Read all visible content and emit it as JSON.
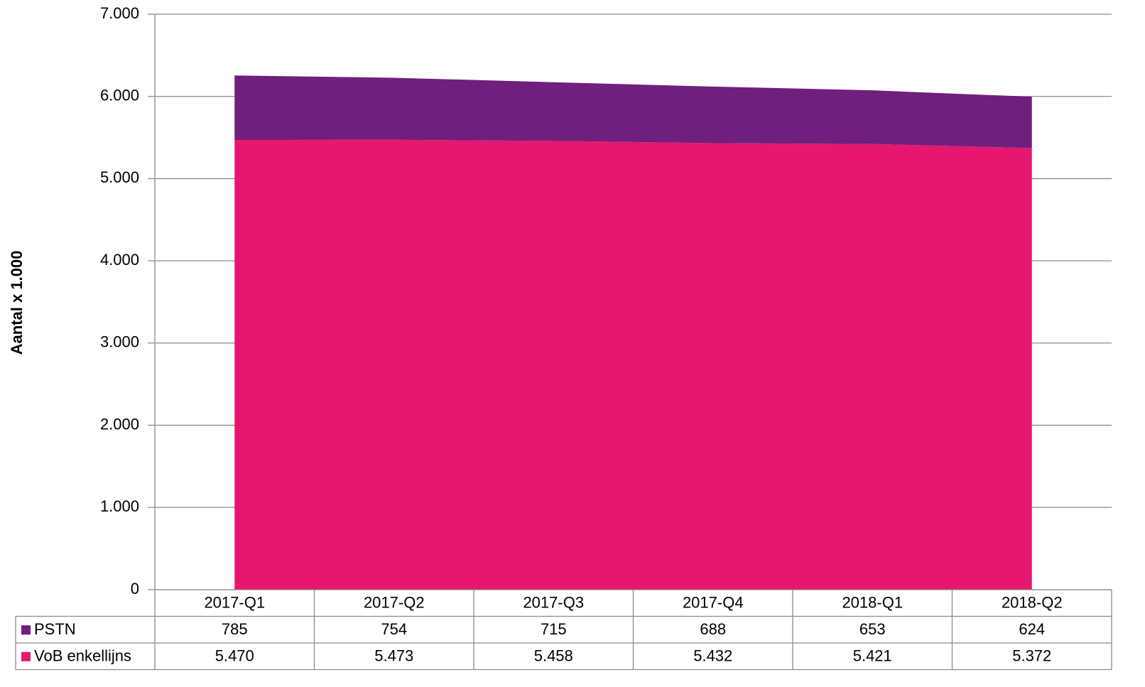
{
  "chart_data": {
    "type": "stacked_area",
    "y_axis_label": "Aantal x 1.000",
    "categories": [
      "2017-Q1",
      "2017-Q2",
      "2017-Q3",
      "2017-Q4",
      "2018-Q1",
      "2018-Q2"
    ],
    "series": [
      {
        "name": "PSTN",
        "color": "#6f1f7c",
        "values": [
          785,
          754,
          715,
          688,
          653,
          624
        ]
      },
      {
        "name": "VoB enkellijns",
        "color": "#e5176e",
        "values": [
          5470,
          5473,
          5458,
          5432,
          5421,
          5372
        ],
        "value_labels": [
          "5.470",
          "5.473",
          "5.458",
          "5.432",
          "5.421",
          "5.372"
        ]
      }
    ],
    "ylim": [
      0,
      7000
    ],
    "yticks": [
      0,
      {
        "value": 1000,
        "label": "1.000"
      },
      {
        "value": 2000,
        "label": "2.000"
      },
      {
        "value": 3000,
        "label": "3.000"
      },
      {
        "value": 4000,
        "label": "4.000"
      },
      {
        "value": 5000,
        "label": "5.000"
      },
      {
        "value": 6000,
        "label": "6.000"
      },
      {
        "value": 7000,
        "label": "7.000"
      }
    ],
    "grid": true
  }
}
